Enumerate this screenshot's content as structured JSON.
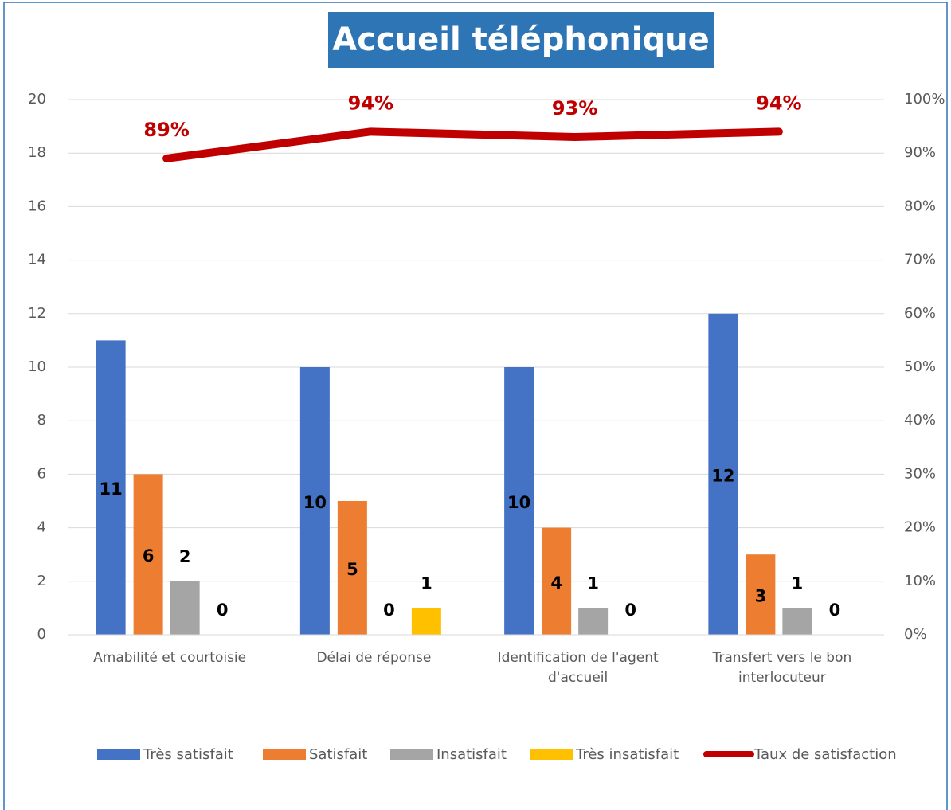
{
  "chart_data": {
    "type": "bar",
    "title": "Accueil téléphonique",
    "categories": [
      "Amabilité et courtoisie",
      "Délai de réponse",
      "Identification de l'agent d'accueil",
      "Transfert vers le bon interlocuteur"
    ],
    "series": [
      {
        "name": "Très satisfait",
        "color": "#4472c4",
        "values": [
          11,
          10,
          10,
          12
        ]
      },
      {
        "name": "Satisfait",
        "color": "#ed7d31",
        "values": [
          6,
          5,
          4,
          3
        ]
      },
      {
        "name": "Insatisfait",
        "color": "#a5a5a5",
        "values": [
          2,
          0,
          1,
          1
        ]
      },
      {
        "name": "Très insatisfait",
        "color": "#ffc000",
        "values": [
          0,
          1,
          0,
          0
        ]
      },
      {
        "name": "Taux de satisfaction",
        "color": "#c00000",
        "type": "line",
        "axis": "y2",
        "values": [
          89,
          94,
          93,
          94
        ],
        "value_labels": [
          "89%",
          "94%",
          "93%",
          "94%"
        ]
      }
    ],
    "ylim": [
      0,
      20
    ],
    "yticks": [
      0,
      2,
      4,
      6,
      8,
      10,
      12,
      14,
      16,
      18,
      20
    ],
    "y2lim": [
      0,
      100
    ],
    "y2ticks": [
      {
        "value": 0,
        "label": "0%"
      },
      {
        "value": 10,
        "label": "10%"
      },
      {
        "value": 20,
        "label": "20%"
      },
      {
        "value": 30,
        "label": "30%"
      },
      {
        "value": 40,
        "label": "40%"
      },
      {
        "value": 50,
        "label": "50%"
      },
      {
        "value": 60,
        "label": "60%"
      },
      {
        "value": 70,
        "label": "70%"
      },
      {
        "value": 80,
        "label": "80%"
      },
      {
        "value": 90,
        "label": "90%"
      },
      {
        "value": 100,
        "label": "100%"
      }
    ],
    "grid": true,
    "legend": "bottom"
  }
}
